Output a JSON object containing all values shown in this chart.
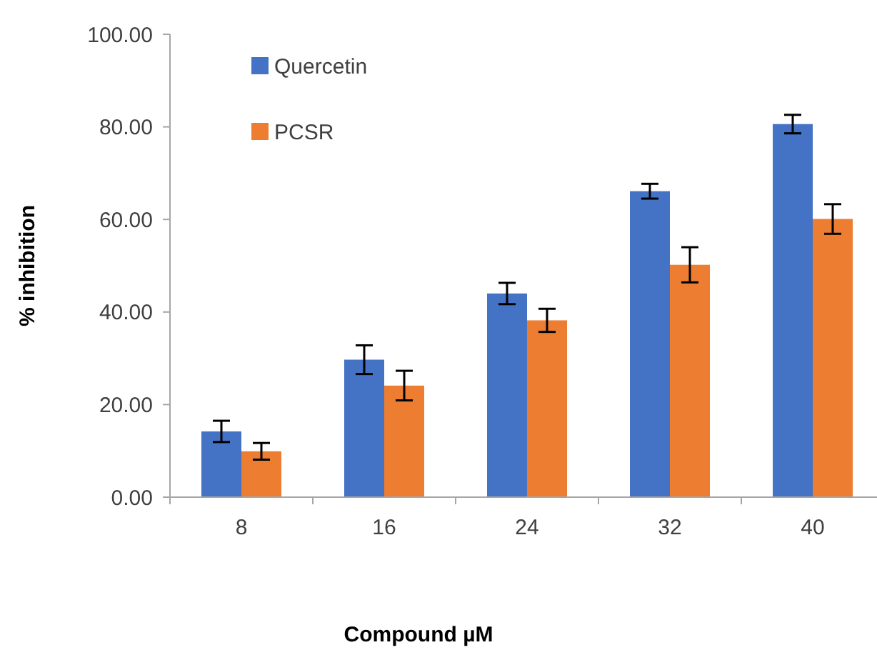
{
  "chart_data": {
    "type": "bar",
    "xlabel": "Compound µM",
    "ylabel": "% inhibition",
    "categories": [
      "8",
      "16",
      "24",
      "32",
      "40"
    ],
    "series": [
      {
        "name": "Quercetin",
        "color": "#4472c4",
        "values": [
          14.2,
          29.7,
          44.0,
          66.1,
          80.6
        ],
        "errors": [
          2.3,
          3.1,
          2.3,
          1.6,
          2.0
        ]
      },
      {
        "name": "PCSR",
        "color": "#ed7d31",
        "values": [
          9.9,
          24.1,
          38.2,
          50.2,
          60.1
        ],
        "errors": [
          1.8,
          3.2,
          2.5,
          3.8,
          3.2
        ]
      }
    ],
    "ylim": [
      0,
      100
    ],
    "yticks": [
      {
        "value": 0,
        "label": "0.00"
      },
      {
        "value": 20,
        "label": "20.00"
      },
      {
        "value": 40,
        "label": "40.00"
      },
      {
        "value": 60,
        "label": "60.00"
      },
      {
        "value": 80,
        "label": "80.00"
      },
      {
        "value": 100,
        "label": "100.00"
      }
    ],
    "legend": "top left"
  }
}
